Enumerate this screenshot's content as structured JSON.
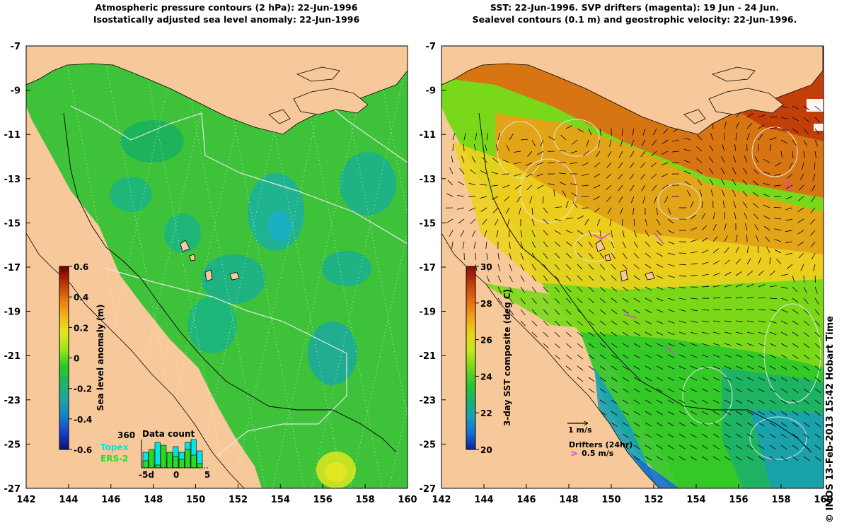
{
  "left_panel": {
    "title_line1": "Atmospheric pressure contours (2 hPa): 22-Jun-1996",
    "title_line2": "Isostatically adjusted sea level anomaly: 22-Jun-1996",
    "colorbar": {
      "label": "Sea level anomaly (m)",
      "ticks": [
        "0.6",
        "0.4",
        "0.2",
        "0",
        "-0.2",
        "-0.4",
        "-0.6"
      ],
      "colors": [
        "#6b0000",
        "#b8320a",
        "#e6780e",
        "#f2b41c",
        "#e8e61e",
        "#99e61a",
        "#22cc22",
        "#1cb566",
        "#19a6a6",
        "#1480cc",
        "#1440c8",
        "#0a1478"
      ]
    },
    "data_count": {
      "title": "Data count",
      "max_label": "360",
      "satellites": [
        {
          "name": "Topex",
          "color": "#00e6e6"
        },
        {
          "name": "ERS-2",
          "color": "#22dd22"
        }
      ],
      "x_ticks": [
        "-5d",
        "0",
        "5"
      ],
      "topex_counts": [
        0.55,
        0.15,
        0.9,
        0.2,
        0.35,
        0.75,
        0.55,
        0.9,
        1.0,
        0.6
      ],
      "ers2_counts": [
        0.25,
        0.65,
        0.1,
        0.8,
        0.55,
        0.4,
        0.3,
        0.65,
        0.45,
        0.15
      ]
    }
  },
  "right_panel": {
    "title_line1": "SST: 22-Jun-1996. SVP drifters (magenta): 19 Jun - 24 Jun.",
    "title_line2": "Sealevel contours (0.1 m) and geostrophic velocity: 22-Jun-1996.",
    "colorbar": {
      "label": "3-day SST composite (deg C)",
      "ticks": [
        "30",
        "28",
        "26",
        "24",
        "22",
        "20"
      ],
      "colors": [
        "#8c0a0a",
        "#c03a0a",
        "#e06a12",
        "#eea018",
        "#ecd21e",
        "#c8e61c",
        "#7ad81a",
        "#2ec82a",
        "#1cb068",
        "#1aa0b4",
        "#1470d2",
        "#1020a0"
      ]
    },
    "velocity_legend": "1 m/s",
    "drifters_label": "Drifters (24hr)",
    "drifters_speed": "0.5 m/s"
  },
  "axes": {
    "lon_ticks": [
      "142",
      "144",
      "146",
      "148",
      "150",
      "152",
      "154",
      "156",
      "158",
      "160"
    ],
    "lat_ticks": [
      "-7",
      "-9",
      "-11",
      "-13",
      "-15",
      "-17",
      "-19",
      "-21",
      "-23",
      "-25",
      "-27"
    ]
  },
  "credit": "© IMOS 13-Feb-2013 15:42 Hobart Time",
  "colors": {
    "land": "#f7c99a",
    "ocean_left": "#3ec23a",
    "drifter": "#e040e0"
  }
}
